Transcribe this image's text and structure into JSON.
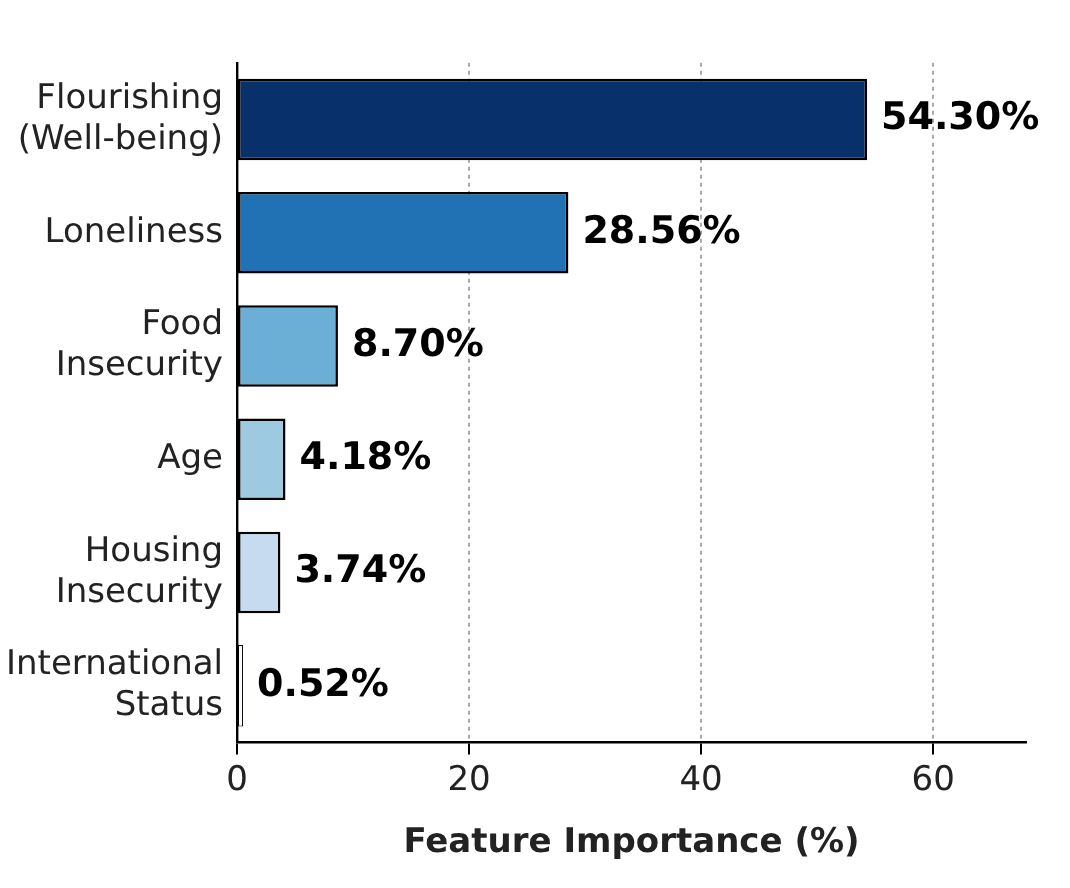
{
  "chart_data": {
    "type": "bar",
    "orientation": "horizontal",
    "xlabel": "Feature Importance (%)",
    "categories": [
      "Flourishing\n(Well-being)",
      "Loneliness",
      "Food\nInsecurity",
      "Age",
      "Housing\nInsecurity",
      "International\nStatus"
    ],
    "values": [
      54.3,
      28.56,
      8.7,
      4.18,
      3.74,
      0.52
    ],
    "value_labels": [
      "54.30%",
      "28.56%",
      "8.70%",
      "4.18%",
      "3.74%",
      "0.52%"
    ],
    "colors": [
      "#08306b",
      "#2171b5",
      "#6baed6",
      "#9ecae1",
      "#c6dbef",
      "#f7fbff"
    ],
    "xlim": [
      0,
      68
    ],
    "xticks": [
      0,
      20,
      40,
      60
    ],
    "grid": "x"
  }
}
